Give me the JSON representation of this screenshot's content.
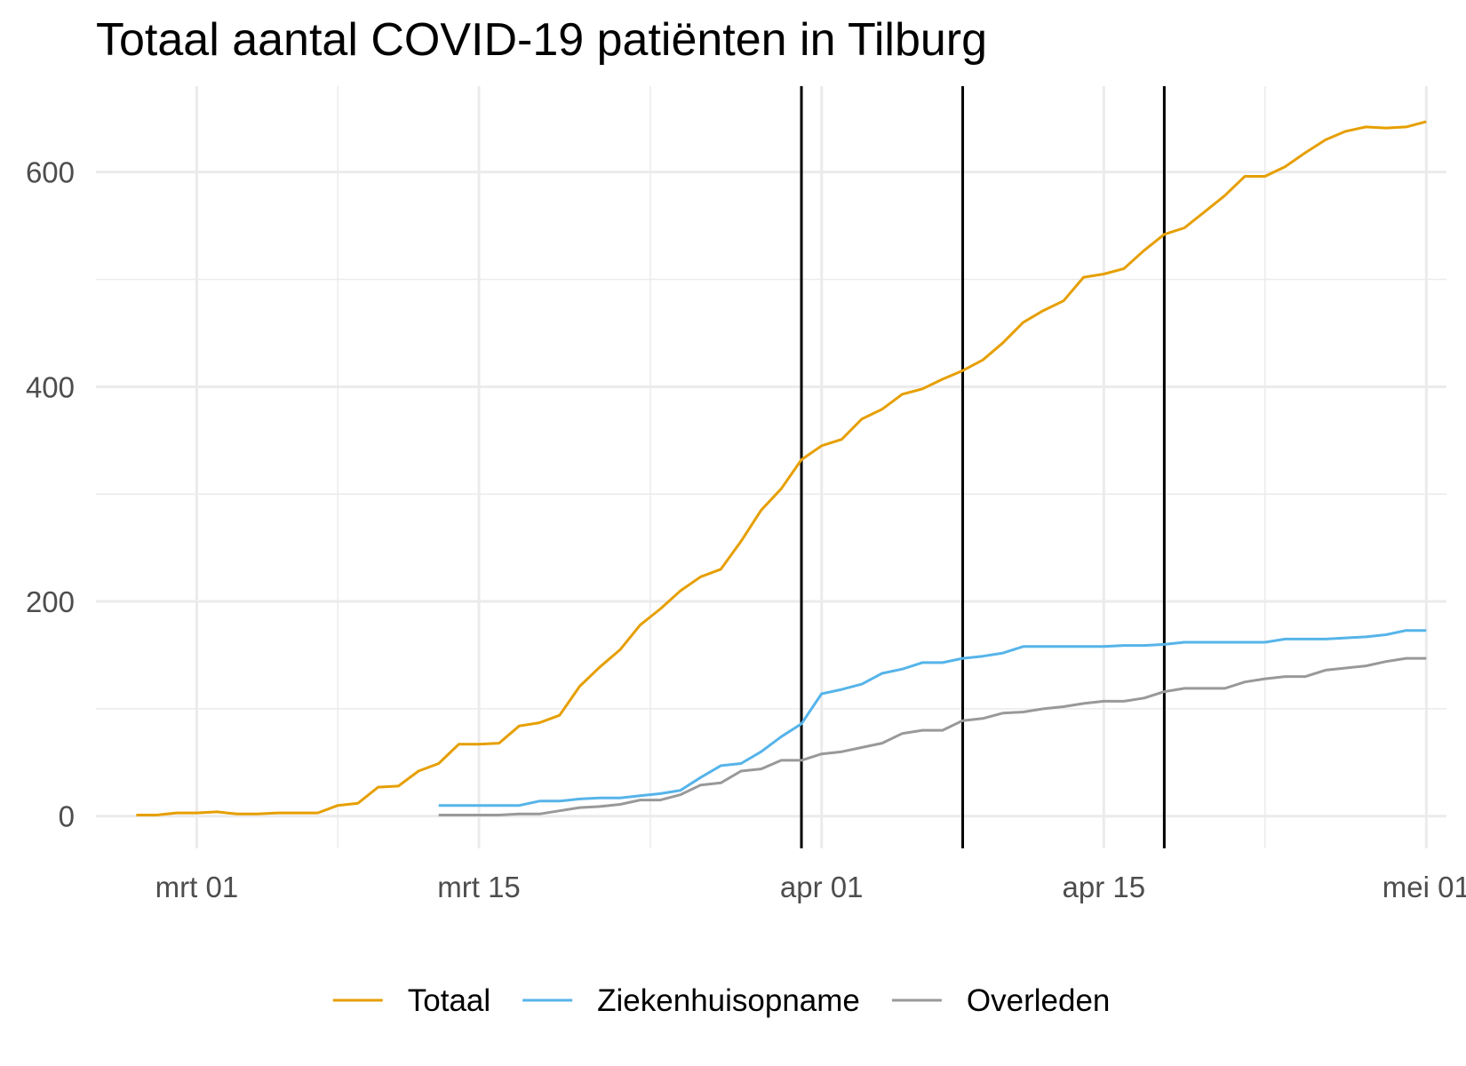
{
  "chart_data": {
    "type": "line",
    "title": "Totaal aantal COVID-19 patiënten in Tilburg",
    "xlabel": "",
    "ylabel": "",
    "x_axis": {
      "type": "date",
      "range": [
        "2020-02-25",
        "2020-05-02"
      ],
      "ticks": [
        {
          "date": "2020-03-01",
          "label": "mrt 01"
        },
        {
          "date": "2020-03-15",
          "label": "mrt 15"
        },
        {
          "date": "2020-04-01",
          "label": "apr 01"
        },
        {
          "date": "2020-04-15",
          "label": "apr 15"
        },
        {
          "date": "2020-05-01",
          "label": "mei 01"
        }
      ]
    },
    "y_axis": {
      "range": [
        -30,
        680
      ],
      "ticks": [
        0,
        200,
        400,
        600
      ],
      "minor_ticks": [
        100,
        300,
        500
      ]
    },
    "grid": true,
    "legend": "bottom",
    "vertical_lines": [
      "2020-03-31",
      "2020-04-08",
      "2020-04-18"
    ],
    "series": [
      {
        "name": "Totaal",
        "color": "#E69F00",
        "points": [
          [
            "2020-02-27",
            1
          ],
          [
            "2020-02-28",
            1
          ],
          [
            "2020-02-29",
            3
          ],
          [
            "2020-03-01",
            3
          ],
          [
            "2020-03-02",
            4
          ],
          [
            "2020-03-03",
            2
          ],
          [
            "2020-03-04",
            2
          ],
          [
            "2020-03-05",
            3
          ],
          [
            "2020-03-06",
            3
          ],
          [
            "2020-03-07",
            3
          ],
          [
            "2020-03-08",
            10
          ],
          [
            "2020-03-09",
            12
          ],
          [
            "2020-03-10",
            27
          ],
          [
            "2020-03-11",
            28
          ],
          [
            "2020-03-12",
            42
          ],
          [
            "2020-03-13",
            49
          ],
          [
            "2020-03-14",
            67
          ],
          [
            "2020-03-15",
            67
          ],
          [
            "2020-03-16",
            68
          ],
          [
            "2020-03-17",
            84
          ],
          [
            "2020-03-18",
            87
          ],
          [
            "2020-03-19",
            94
          ],
          [
            "2020-03-20",
            121
          ],
          [
            "2020-03-21",
            139
          ],
          [
            "2020-03-22",
            155
          ],
          [
            "2020-03-23",
            178
          ],
          [
            "2020-03-24",
            193
          ],
          [
            "2020-03-25",
            210
          ],
          [
            "2020-03-26",
            223
          ],
          [
            "2020-03-27",
            230
          ],
          [
            "2020-03-28",
            256
          ],
          [
            "2020-03-29",
            285
          ],
          [
            "2020-03-30",
            305
          ],
          [
            "2020-03-31",
            332
          ],
          [
            "2020-04-01",
            345
          ],
          [
            "2020-04-02",
            351
          ],
          [
            "2020-04-03",
            370
          ],
          [
            "2020-04-04",
            379
          ],
          [
            "2020-04-05",
            393
          ],
          [
            "2020-04-06",
            398
          ],
          [
            "2020-04-07",
            407
          ],
          [
            "2020-04-08",
            415
          ],
          [
            "2020-04-09",
            425
          ],
          [
            "2020-04-10",
            441
          ],
          [
            "2020-04-11",
            460
          ],
          [
            "2020-04-12",
            471
          ],
          [
            "2020-04-13",
            480
          ],
          [
            "2020-04-14",
            502
          ],
          [
            "2020-04-15",
            505
          ],
          [
            "2020-04-16",
            510
          ],
          [
            "2020-04-17",
            527
          ],
          [
            "2020-04-18",
            542
          ],
          [
            "2020-04-19",
            548
          ],
          [
            "2020-04-20",
            563
          ],
          [
            "2020-04-21",
            578
          ],
          [
            "2020-04-22",
            596
          ],
          [
            "2020-04-23",
            596
          ],
          [
            "2020-04-24",
            605
          ],
          [
            "2020-04-25",
            618
          ],
          [
            "2020-04-26",
            630
          ],
          [
            "2020-04-27",
            638
          ],
          [
            "2020-04-28",
            642
          ],
          [
            "2020-04-29",
            641
          ],
          [
            "2020-04-30",
            642
          ],
          [
            "2020-05-01",
            647
          ]
        ]
      },
      {
        "name": "Ziekenhuisopname",
        "color": "#56B4E9",
        "points": [
          [
            "2020-03-13",
            10
          ],
          [
            "2020-03-14",
            10
          ],
          [
            "2020-03-15",
            10
          ],
          [
            "2020-03-16",
            10
          ],
          [
            "2020-03-17",
            10
          ],
          [
            "2020-03-18",
            14
          ],
          [
            "2020-03-19",
            14
          ],
          [
            "2020-03-20",
            16
          ],
          [
            "2020-03-21",
            17
          ],
          [
            "2020-03-22",
            17
          ],
          [
            "2020-03-23",
            19
          ],
          [
            "2020-03-24",
            21
          ],
          [
            "2020-03-25",
            24
          ],
          [
            "2020-03-26",
            36
          ],
          [
            "2020-03-27",
            47
          ],
          [
            "2020-03-28",
            49
          ],
          [
            "2020-03-29",
            60
          ],
          [
            "2020-03-30",
            74
          ],
          [
            "2020-03-31",
            86
          ],
          [
            "2020-04-01",
            114
          ],
          [
            "2020-04-02",
            118
          ],
          [
            "2020-04-03",
            123
          ],
          [
            "2020-04-04",
            133
          ],
          [
            "2020-04-05",
            137
          ],
          [
            "2020-04-06",
            143
          ],
          [
            "2020-04-07",
            143
          ],
          [
            "2020-04-08",
            147
          ],
          [
            "2020-04-09",
            149
          ],
          [
            "2020-04-10",
            152
          ],
          [
            "2020-04-11",
            158
          ],
          [
            "2020-04-12",
            158
          ],
          [
            "2020-04-13",
            158
          ],
          [
            "2020-04-14",
            158
          ],
          [
            "2020-04-15",
            158
          ],
          [
            "2020-04-16",
            159
          ],
          [
            "2020-04-17",
            159
          ],
          [
            "2020-04-18",
            160
          ],
          [
            "2020-04-19",
            162
          ],
          [
            "2020-04-20",
            162
          ],
          [
            "2020-04-21",
            162
          ],
          [
            "2020-04-22",
            162
          ],
          [
            "2020-04-23",
            162
          ],
          [
            "2020-04-24",
            165
          ],
          [
            "2020-04-25",
            165
          ],
          [
            "2020-04-26",
            165
          ],
          [
            "2020-04-27",
            166
          ],
          [
            "2020-04-28",
            167
          ],
          [
            "2020-04-29",
            169
          ],
          [
            "2020-04-30",
            173
          ],
          [
            "2020-05-01",
            173
          ]
        ]
      },
      {
        "name": "Overleden",
        "color": "#999999",
        "points": [
          [
            "2020-03-13",
            1
          ],
          [
            "2020-03-14",
            1
          ],
          [
            "2020-03-15",
            1
          ],
          [
            "2020-03-16",
            1
          ],
          [
            "2020-03-17",
            2
          ],
          [
            "2020-03-18",
            2
          ],
          [
            "2020-03-19",
            5
          ],
          [
            "2020-03-20",
            8
          ],
          [
            "2020-03-21",
            9
          ],
          [
            "2020-03-22",
            11
          ],
          [
            "2020-03-23",
            15
          ],
          [
            "2020-03-24",
            15
          ],
          [
            "2020-03-25",
            20
          ],
          [
            "2020-03-26",
            29
          ],
          [
            "2020-03-27",
            31
          ],
          [
            "2020-03-28",
            42
          ],
          [
            "2020-03-29",
            44
          ],
          [
            "2020-03-30",
            52
          ],
          [
            "2020-03-31",
            52
          ],
          [
            "2020-04-01",
            58
          ],
          [
            "2020-04-02",
            60
          ],
          [
            "2020-04-03",
            64
          ],
          [
            "2020-04-04",
            68
          ],
          [
            "2020-04-05",
            77
          ],
          [
            "2020-04-06",
            80
          ],
          [
            "2020-04-07",
            80
          ],
          [
            "2020-04-08",
            89
          ],
          [
            "2020-04-09",
            91
          ],
          [
            "2020-04-10",
            96
          ],
          [
            "2020-04-11",
            97
          ],
          [
            "2020-04-12",
            100
          ],
          [
            "2020-04-13",
            102
          ],
          [
            "2020-04-14",
            105
          ],
          [
            "2020-04-15",
            107
          ],
          [
            "2020-04-16",
            107
          ],
          [
            "2020-04-17",
            110
          ],
          [
            "2020-04-18",
            116
          ],
          [
            "2020-04-19",
            119
          ],
          [
            "2020-04-20",
            119
          ],
          [
            "2020-04-21",
            119
          ],
          [
            "2020-04-22",
            125
          ],
          [
            "2020-04-23",
            128
          ],
          [
            "2020-04-24",
            130
          ],
          [
            "2020-04-25",
            130
          ],
          [
            "2020-04-26",
            136
          ],
          [
            "2020-04-27",
            138
          ],
          [
            "2020-04-28",
            140
          ],
          [
            "2020-04-29",
            144
          ],
          [
            "2020-04-30",
            147
          ],
          [
            "2020-05-01",
            147
          ]
        ]
      }
    ]
  }
}
